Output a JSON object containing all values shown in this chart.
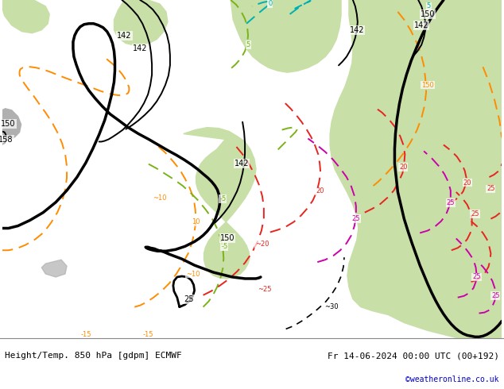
{
  "title_left": "Height/Temp. 850 hPa [gdpm] ECMWF",
  "title_right": "Fr 14-06-2024 00:00 UTC (00+192)",
  "credit": "©weatheronline.co.uk",
  "bg_color": "#ffffff",
  "sea_color": "#d3d3d3",
  "land_green": "#c8dfa8",
  "land_gray": "#b0b0b0",
  "bottom_bar_color": "#e8e8e8",
  "figsize": [
    6.34,
    4.9
  ],
  "dpi": 100,
  "geo_color": "#000000",
  "geo_lw": 2.5,
  "geo_thin_lw": 1.4,
  "temp_orange": "#ff8c00",
  "temp_ygreen": "#7ab317",
  "temp_red": "#e8241e",
  "temp_darkred": "#cc0000",
  "temp_magenta": "#cc00aa",
  "temp_cyan": "#00b0b0",
  "temp_lw": 1.4,
  "label_fs": 7,
  "title_fs": 8,
  "text_color": "#000000",
  "credit_color": "#0000cc"
}
